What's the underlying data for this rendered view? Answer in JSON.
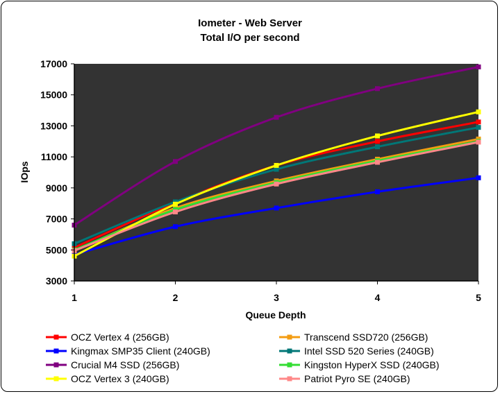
{
  "chart_data": {
    "type": "line",
    "title": "Iometer - Web Server",
    "subtitle": "Total I/O per second",
    "xlabel": "Queue Depth",
    "ylabel": "IOps",
    "x": [
      1,
      2,
      3,
      4,
      5
    ],
    "x_ticks": [
      "1",
      "2",
      "3",
      "4",
      "5"
    ],
    "ylim": [
      3000,
      17000
    ],
    "y_ticks": [
      "3000",
      "5000",
      "7000",
      "9000",
      "11000",
      "13000",
      "15000",
      "17000"
    ],
    "grid": false,
    "plot_background": "#333333",
    "legend_position": "bottom",
    "series": [
      {
        "name": "OCZ Vertex 4 (256GB)",
        "color": "#ff0000",
        "values": [
          5150,
          8050,
          10450,
          12000,
          13250
        ]
      },
      {
        "name": "Transcend SSD720 (256GB)",
        "color": "#f39c12",
        "values": [
          4950,
          7700,
          9450,
          10850,
          12150
        ]
      },
      {
        "name": "Kingmax SMP35 Client (240GB)",
        "color": "#0000ff",
        "values": [
          4700,
          6500,
          7700,
          8750,
          9650
        ]
      },
      {
        "name": "Intel SSD 520 Series (240GB)",
        "color": "#007777",
        "values": [
          5400,
          8100,
          10200,
          11650,
          12900
        ]
      },
      {
        "name": "Crucial M4 SSD (256GB)",
        "color": "#800080",
        "values": [
          6600,
          10700,
          13550,
          15400,
          16800
        ]
      },
      {
        "name": "Kingston HyperX SSD (240GB)",
        "color": "#33dd33",
        "values": [
          5000,
          7600,
          9350,
          10750,
          12000
        ]
      },
      {
        "name": "OCZ Vertex 3 (240GB)",
        "color": "#ffff00",
        "values": [
          4600,
          7950,
          10450,
          12350,
          13900
        ]
      },
      {
        "name": "Patriot Pyro SE (240GB)",
        "color": "#ff8888",
        "values": [
          4950,
          7450,
          9250,
          10650,
          11950
        ]
      }
    ]
  }
}
